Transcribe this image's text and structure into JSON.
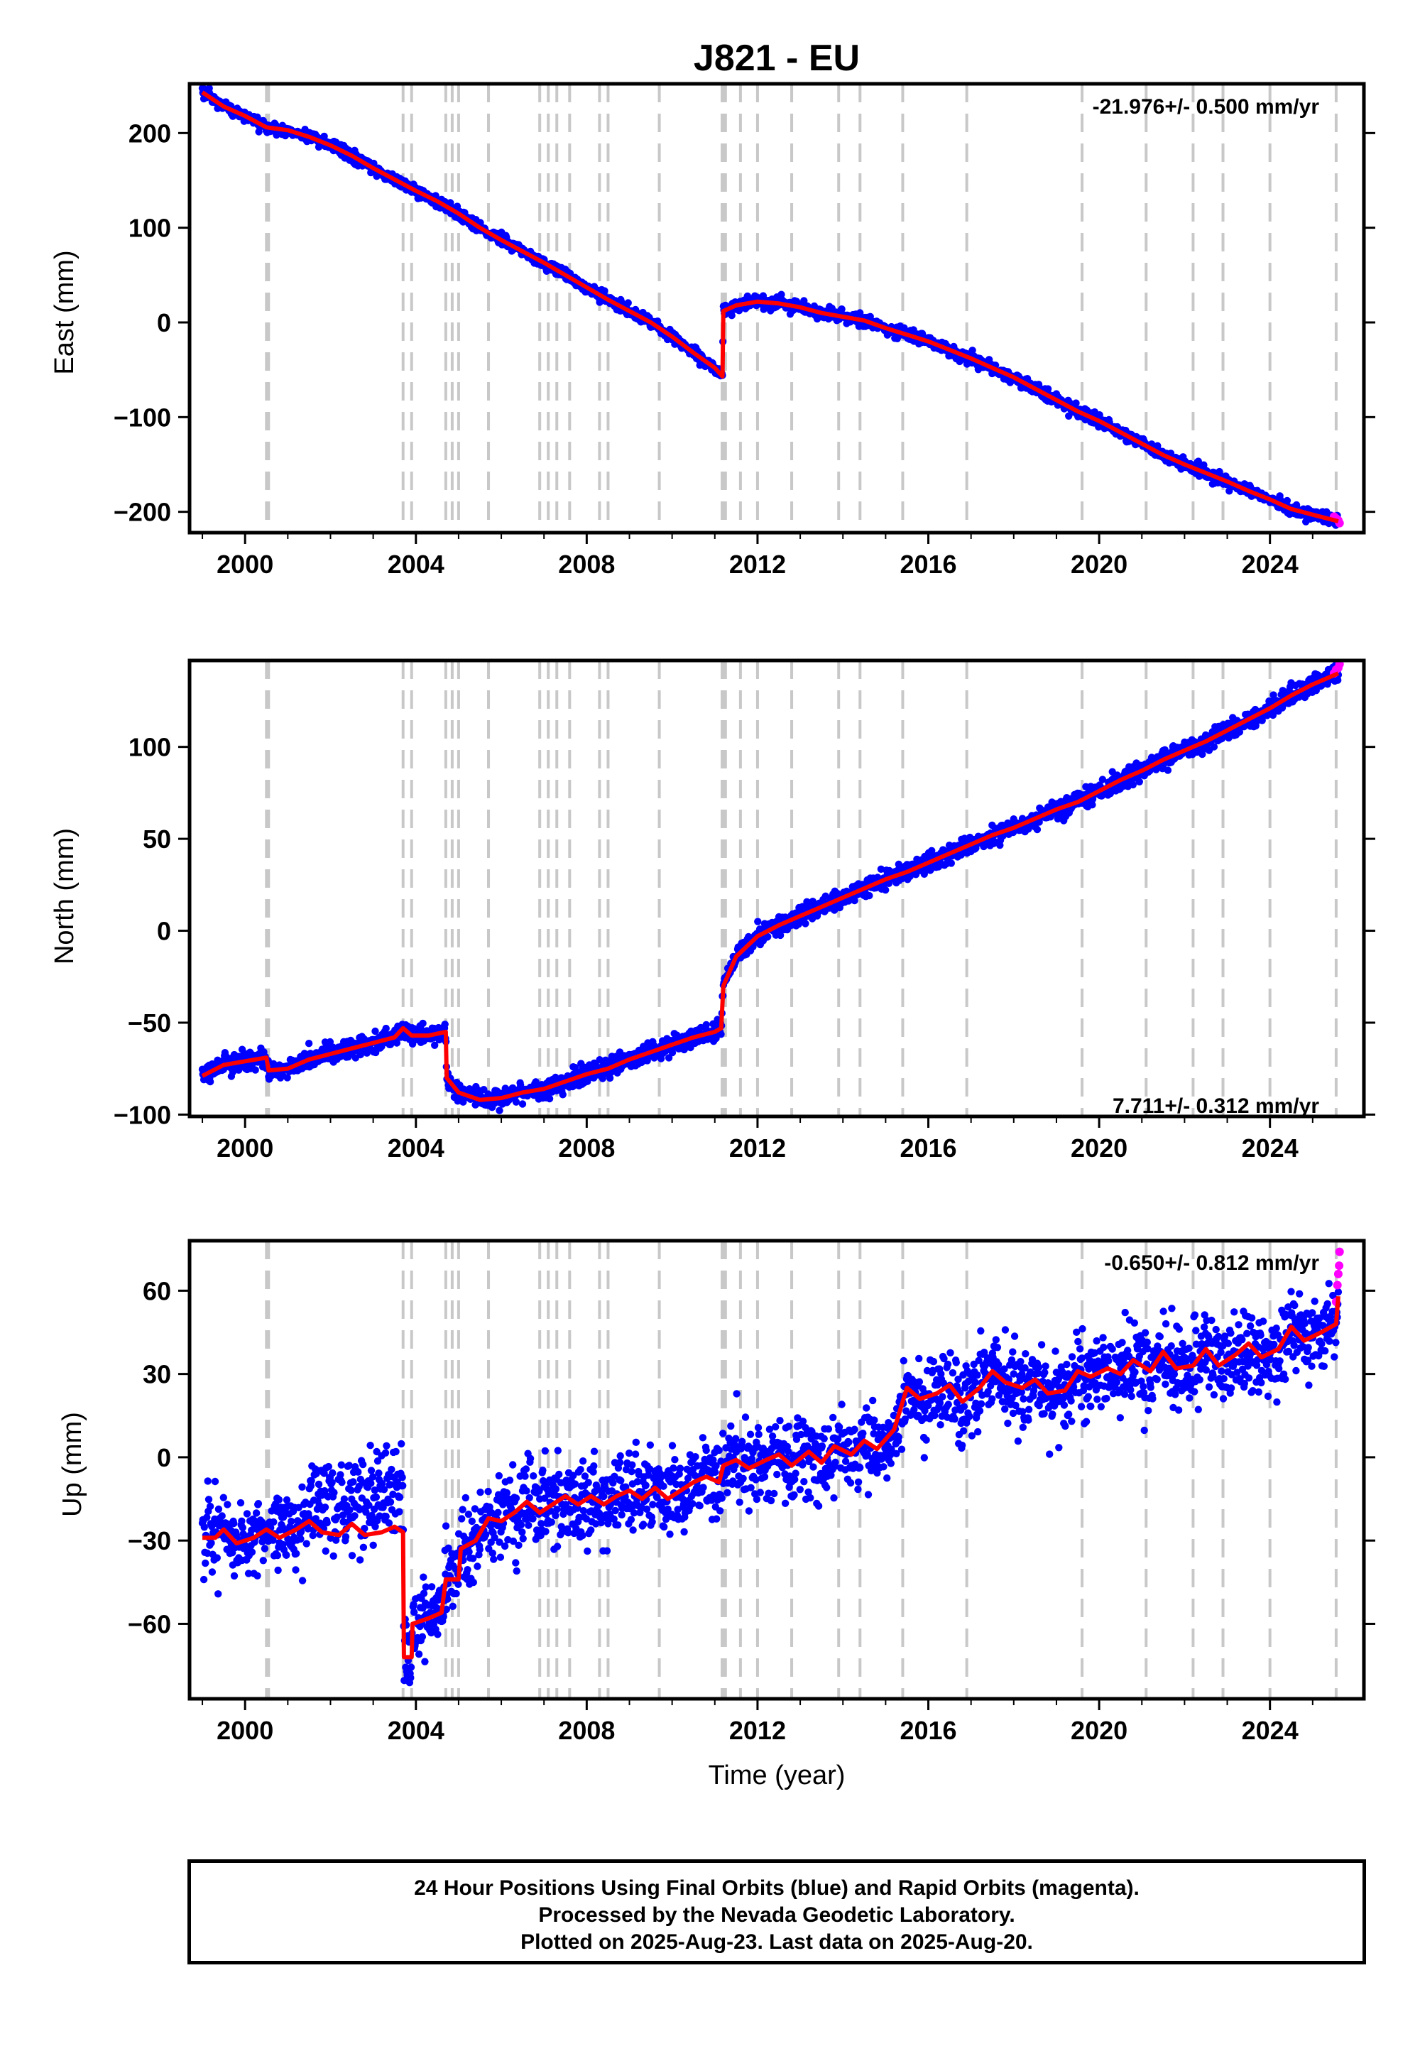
{
  "title": "J821 - EU",
  "xlabel": "Time (year)",
  "colors": {
    "final_orbits": "#0000ff",
    "rapid_orbits": "#ff00ff",
    "model": "#ff0000",
    "event_lines": "#c8c8c8"
  },
  "info": {
    "line1": "24 Hour Positions Using Final Orbits (blue) and Rapid Orbits (magenta).",
    "line2": "Processed by the Nevada Geodetic Laboratory.",
    "line3": "Plotted on 2025-Aug-23. Last data on 2025-Aug-20."
  },
  "chart_data": [
    {
      "type": "scatter",
      "name": "east",
      "ylabel": "East (mm)",
      "rate_label": "-21.976+/- 0.500 mm/yr",
      "rate_position": "top-right",
      "xlim": [
        1998.7,
        2026.2
      ],
      "ylim": [
        -222,
        252
      ],
      "xticks": [
        2000,
        2004,
        2008,
        2012,
        2016,
        2020,
        2024
      ],
      "xtick_labels": [
        "2000",
        "2004",
        "2008",
        "2012",
        "2016",
        "2020",
        "2024"
      ],
      "yticks": [
        -200,
        -100,
        0,
        100,
        200
      ],
      "ytick_labels": [
        "−200",
        "−100",
        "0",
        "100",
        "200"
      ],
      "event_lines": [
        2000.5,
        2000.55,
        2003.7,
        2003.9,
        2004.7,
        2004.85,
        2005.0,
        2005.7,
        2006.9,
        2007.1,
        2007.3,
        2007.6,
        2008.3,
        2008.5,
        2009.7,
        2011.17,
        2011.2,
        2011.25,
        2011.6,
        2012.0,
        2012.8,
        2013.9,
        2014.4,
        2015.4,
        2016.9,
        2019.6,
        2021.1,
        2022.2,
        2022.9,
        2024.0,
        2025.55
      ],
      "trend": [
        [
          1999.0,
          243
        ],
        [
          1999.5,
          228
        ],
        [
          2000.0,
          218
        ],
        [
          2000.5,
          206
        ],
        [
          2001.0,
          203
        ],
        [
          2001.5,
          196
        ],
        [
          2002.0,
          187
        ],
        [
          2002.5,
          176
        ],
        [
          2003.0,
          163
        ],
        [
          2003.5,
          151
        ],
        [
          2004.0,
          139
        ],
        [
          2004.5,
          128
        ],
        [
          2005.0,
          115
        ],
        [
          2005.5,
          100
        ],
        [
          2006.0,
          87
        ],
        [
          2006.5,
          75
        ],
        [
          2007.0,
          63
        ],
        [
          2007.5,
          50
        ],
        [
          2008.0,
          37
        ],
        [
          2008.5,
          24
        ],
        [
          2009.0,
          12
        ],
        [
          2009.5,
          0
        ],
        [
          2010.0,
          -15
        ],
        [
          2010.5,
          -32
        ],
        [
          2011.0,
          -48
        ],
        [
          2011.18,
          -57
        ],
        [
          2011.2,
          12
        ],
        [
          2011.5,
          18
        ],
        [
          2012.0,
          22
        ],
        [
          2012.5,
          20
        ],
        [
          2013.0,
          16
        ],
        [
          2013.5,
          10
        ],
        [
          2014.0,
          6
        ],
        [
          2014.5,
          2
        ],
        [
          2015.0,
          -6
        ],
        [
          2015.5,
          -13
        ],
        [
          2016.0,
          -20
        ],
        [
          2016.5,
          -29
        ],
        [
          2017.0,
          -38
        ],
        [
          2017.5,
          -48
        ],
        [
          2018.0,
          -58
        ],
        [
          2018.5,
          -70
        ],
        [
          2019.0,
          -82
        ],
        [
          2019.5,
          -94
        ],
        [
          2020.0,
          -104
        ],
        [
          2020.5,
          -116
        ],
        [
          2021.0,
          -128
        ],
        [
          2021.5,
          -140
        ],
        [
          2022.0,
          -150
        ],
        [
          2022.5,
          -159
        ],
        [
          2023.0,
          -168
        ],
        [
          2023.5,
          -178
        ],
        [
          2024.0,
          -187
        ],
        [
          2024.5,
          -197
        ],
        [
          2025.0,
          -203
        ],
        [
          2025.6,
          -210
        ]
      ],
      "scatter_sigma": 3,
      "rapid": [
        [
          2025.5,
          -205
        ],
        [
          2025.55,
          -207
        ],
        [
          2025.6,
          -209
        ],
        [
          2025.63,
          -212
        ]
      ]
    },
    {
      "type": "scatter",
      "name": "north",
      "ylabel": "North (mm)",
      "rate_label": "7.711+/- 0.312 mm/yr",
      "rate_position": "bottom-right",
      "xlim": [
        1998.7,
        2026.2
      ],
      "ylim": [
        -101,
        147
      ],
      "xticks": [
        2000,
        2004,
        2008,
        2012,
        2016,
        2020,
        2024
      ],
      "xtick_labels": [
        "2000",
        "2004",
        "2008",
        "2012",
        "2016",
        "2020",
        "2024"
      ],
      "yticks": [
        -100,
        -50,
        0,
        50,
        100
      ],
      "ytick_labels": [
        "−100",
        "−50",
        "0",
        "50",
        "100"
      ],
      "event_lines": [
        2000.5,
        2000.55,
        2003.7,
        2003.9,
        2004.7,
        2004.85,
        2005.0,
        2005.7,
        2006.9,
        2007.1,
        2007.3,
        2007.6,
        2008.3,
        2008.5,
        2009.7,
        2011.17,
        2011.2,
        2011.25,
        2011.6,
        2012.0,
        2012.8,
        2013.9,
        2014.4,
        2015.4,
        2016.9,
        2019.6,
        2021.1,
        2022.2,
        2022.9,
        2024.0,
        2025.55
      ],
      "trend": [
        [
          1999.0,
          -79
        ],
        [
          1999.5,
          -73
        ],
        [
          2000.0,
          -71
        ],
        [
          2000.5,
          -69
        ],
        [
          2000.55,
          -76
        ],
        [
          2001.0,
          -75
        ],
        [
          2001.5,
          -70
        ],
        [
          2002.0,
          -67
        ],
        [
          2002.5,
          -64
        ],
        [
          2003.0,
          -61
        ],
        [
          2003.5,
          -58
        ],
        [
          2003.7,
          -53
        ],
        [
          2003.9,
          -57
        ],
        [
          2004.3,
          -57
        ],
        [
          2004.7,
          -55
        ],
        [
          2004.72,
          -80
        ],
        [
          2005.0,
          -88
        ],
        [
          2005.5,
          -92
        ],
        [
          2006.0,
          -91
        ],
        [
          2006.5,
          -88
        ],
        [
          2007.0,
          -86
        ],
        [
          2007.5,
          -82
        ],
        [
          2008.0,
          -78
        ],
        [
          2008.5,
          -75
        ],
        [
          2009.0,
          -70
        ],
        [
          2009.5,
          -66
        ],
        [
          2010.0,
          -62
        ],
        [
          2010.5,
          -58
        ],
        [
          2011.0,
          -55
        ],
        [
          2011.15,
          -53
        ],
        [
          2011.2,
          -30
        ],
        [
          2011.5,
          -14
        ],
        [
          2012.0,
          -3
        ],
        [
          2012.5,
          3
        ],
        [
          2013.0,
          8
        ],
        [
          2013.5,
          13
        ],
        [
          2014.0,
          18
        ],
        [
          2014.5,
          23
        ],
        [
          2015.0,
          28
        ],
        [
          2015.5,
          32
        ],
        [
          2016.0,
          37
        ],
        [
          2016.5,
          42
        ],
        [
          2017.0,
          47
        ],
        [
          2017.5,
          52
        ],
        [
          2018.0,
          56
        ],
        [
          2018.5,
          61
        ],
        [
          2019.0,
          66
        ],
        [
          2019.5,
          70
        ],
        [
          2020.0,
          76
        ],
        [
          2020.5,
          82
        ],
        [
          2021.0,
          87
        ],
        [
          2021.5,
          93
        ],
        [
          2022.0,
          98
        ],
        [
          2022.5,
          103
        ],
        [
          2023.0,
          109
        ],
        [
          2023.5,
          115
        ],
        [
          2024.0,
          121
        ],
        [
          2024.5,
          128
        ],
        [
          2025.0,
          134
        ],
        [
          2025.6,
          140
        ]
      ],
      "scatter_sigma": 2.5,
      "rapid": [
        [
          2025.5,
          140
        ],
        [
          2025.55,
          142
        ],
        [
          2025.6,
          143
        ],
        [
          2025.63,
          145
        ]
      ]
    },
    {
      "type": "scatter",
      "name": "up",
      "ylabel": "Up (mm)",
      "rate_label": "-0.650+/- 0.812 mm/yr",
      "rate_position": "top-right",
      "xlim": [
        1998.7,
        2026.2
      ],
      "ylim": [
        -87,
        78
      ],
      "xticks": [
        2000,
        2004,
        2008,
        2012,
        2016,
        2020,
        2024
      ],
      "xtick_labels": [
        "2000",
        "2004",
        "2008",
        "2012",
        "2016",
        "2020",
        "2024"
      ],
      "yticks": [
        -60,
        -30,
        0,
        30,
        60
      ],
      "ytick_labels": [
        "−60",
        "−30",
        "0",
        "30",
        "60"
      ],
      "event_lines": [
        2000.5,
        2000.55,
        2003.7,
        2003.9,
        2004.7,
        2004.85,
        2005.0,
        2005.7,
        2006.9,
        2007.1,
        2007.3,
        2007.6,
        2008.3,
        2008.5,
        2009.7,
        2011.17,
        2011.2,
        2011.25,
        2011.6,
        2012.0,
        2012.8,
        2013.9,
        2014.4,
        2015.4,
        2016.9,
        2019.6,
        2021.1,
        2022.2,
        2022.9,
        2024.0,
        2025.55
      ],
      "trend": [
        [
          1999.0,
          -29
        ],
        [
          1999.3,
          -29
        ],
        [
          1999.5,
          -26
        ],
        [
          1999.8,
          -31
        ],
        [
          2000.2,
          -29
        ],
        [
          2000.5,
          -26
        ],
        [
          2000.8,
          -29
        ],
        [
          2001.2,
          -26
        ],
        [
          2001.5,
          -23
        ],
        [
          2001.8,
          -27
        ],
        [
          2002.2,
          -28
        ],
        [
          2002.5,
          -24
        ],
        [
          2002.8,
          -28
        ],
        [
          2003.2,
          -27
        ],
        [
          2003.5,
          -25
        ],
        [
          2003.7,
          -27
        ],
        [
          2003.72,
          -72
        ],
        [
          2003.9,
          -72
        ],
        [
          2003.92,
          -60
        ],
        [
          2004.3,
          -58
        ],
        [
          2004.6,
          -56
        ],
        [
          2004.7,
          -44
        ],
        [
          2005.0,
          -44
        ],
        [
          2005.05,
          -33
        ],
        [
          2005.4,
          -30
        ],
        [
          2005.7,
          -22
        ],
        [
          2006.0,
          -23
        ],
        [
          2006.3,
          -20
        ],
        [
          2006.6,
          -16
        ],
        [
          2006.9,
          -20
        ],
        [
          2007.2,
          -17
        ],
        [
          2007.5,
          -14
        ],
        [
          2007.8,
          -17
        ],
        [
          2008.1,
          -14
        ],
        [
          2008.4,
          -17
        ],
        [
          2008.7,
          -14
        ],
        [
          2009.0,
          -12
        ],
        [
          2009.3,
          -15
        ],
        [
          2009.6,
          -11
        ],
        [
          2009.9,
          -15
        ],
        [
          2010.2,
          -12
        ],
        [
          2010.5,
          -9
        ],
        [
          2010.8,
          -7
        ],
        [
          2011.1,
          -9
        ],
        [
          2011.2,
          -3
        ],
        [
          2011.5,
          -1
        ],
        [
          2011.8,
          -4
        ],
        [
          2012.2,
          -1
        ],
        [
          2012.5,
          1
        ],
        [
          2012.8,
          -3
        ],
        [
          2013.2,
          2
        ],
        [
          2013.5,
          -2
        ],
        [
          2013.8,
          4
        ],
        [
          2014.2,
          1
        ],
        [
          2014.5,
          6
        ],
        [
          2014.8,
          3
        ],
        [
          2015.2,
          10
        ],
        [
          2015.5,
          25
        ],
        [
          2015.8,
          21
        ],
        [
          2016.2,
          23
        ],
        [
          2016.5,
          26
        ],
        [
          2016.8,
          20
        ],
        [
          2017.2,
          25
        ],
        [
          2017.5,
          31
        ],
        [
          2017.8,
          27
        ],
        [
          2018.2,
          25
        ],
        [
          2018.5,
          28
        ],
        [
          2018.8,
          23
        ],
        [
          2019.2,
          24
        ],
        [
          2019.5,
          31
        ],
        [
          2019.8,
          29
        ],
        [
          2020.2,
          32
        ],
        [
          2020.5,
          30
        ],
        [
          2020.8,
          35
        ],
        [
          2021.2,
          31
        ],
        [
          2021.5,
          38
        ],
        [
          2021.8,
          32
        ],
        [
          2022.2,
          33
        ],
        [
          2022.5,
          39
        ],
        [
          2022.8,
          33
        ],
        [
          2023.2,
          37
        ],
        [
          2023.5,
          41
        ],
        [
          2023.8,
          36
        ],
        [
          2024.2,
          39
        ],
        [
          2024.5,
          47
        ],
        [
          2024.8,
          42
        ],
        [
          2025.2,
          45
        ],
        [
          2025.55,
          48
        ],
        [
          2025.6,
          58
        ]
      ],
      "scatter_sigma": 7,
      "rapid": [
        [
          2025.55,
          56
        ],
        [
          2025.58,
          62
        ],
        [
          2025.6,
          66
        ],
        [
          2025.62,
          69
        ],
        [
          2025.63,
          74
        ]
      ]
    }
  ]
}
